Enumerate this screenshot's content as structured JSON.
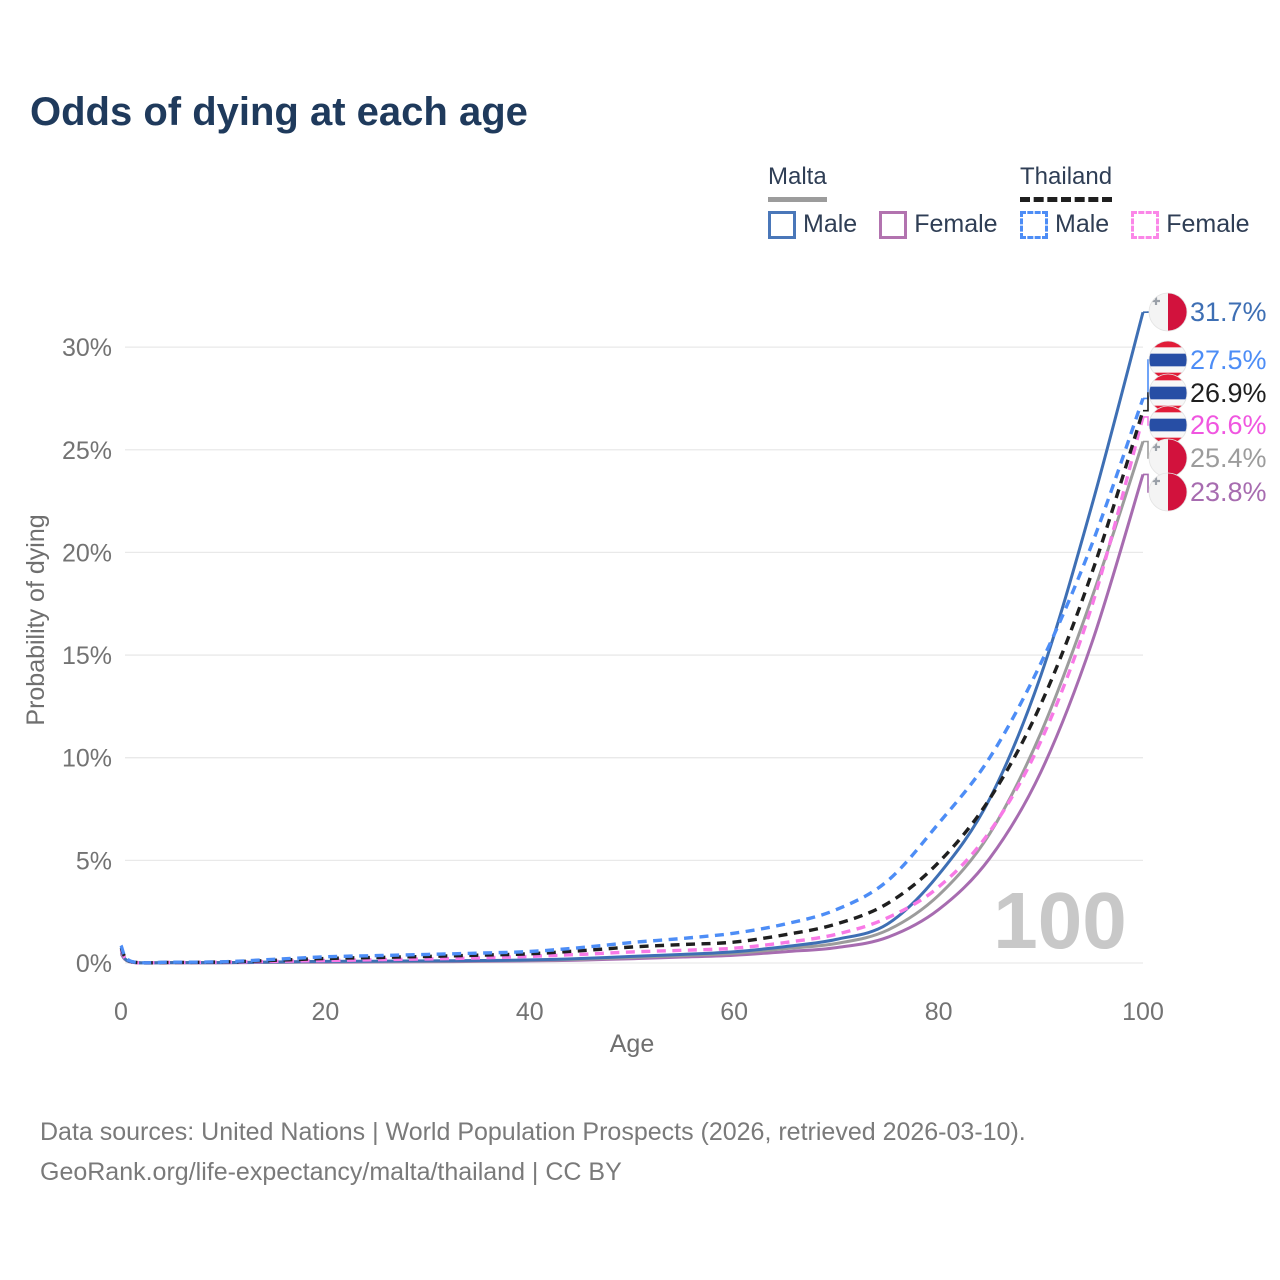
{
  "title": "Odds of dying at each age",
  "legend": {
    "groups": [
      {
        "country": "Malta",
        "line_style": "solid",
        "underline_color": "#9c9c9c",
        "items": [
          {
            "label": "Male",
            "color": "#4a77b9",
            "dashed": false
          },
          {
            "label": "Female",
            "color": "#b273af",
            "dashed": false
          }
        ]
      },
      {
        "country": "Thailand",
        "line_style": "dashed",
        "underline_color": "#1f1f1f",
        "items": [
          {
            "label": "Male",
            "color": "#4d8df6",
            "dashed": true
          },
          {
            "label": "Female",
            "color": "#fb86e8",
            "dashed": true
          }
        ]
      }
    ]
  },
  "watermark": "100",
  "footer": {
    "line1": "Data sources: United Nations | World Population Prospects (2026, retrieved 2026-03-10).",
    "line2": "GeoRank.org/life-expectancy/malta/thailand | CC BY"
  },
  "chart_data": {
    "type": "line",
    "title": "Odds of dying at each age",
    "xlabel": "Age",
    "ylabel": "Probability of dying",
    "xlim": [
      0,
      100
    ],
    "ylim": [
      0,
      32
    ],
    "xticks": [
      0,
      20,
      40,
      60,
      80,
      100
    ],
    "ytick_labels": [
      "0%",
      "5%",
      "10%",
      "15%",
      "20%",
      "25%",
      "30%"
    ],
    "ytick_values": [
      0,
      5,
      10,
      15,
      20,
      25,
      30
    ],
    "grid": "horizontal",
    "hover_age": 100,
    "x": [
      0,
      1,
      5,
      10,
      15,
      20,
      25,
      30,
      35,
      40,
      45,
      50,
      55,
      60,
      65,
      70,
      75,
      80,
      85,
      90,
      95,
      100
    ],
    "series": [
      {
        "id": "malta-female",
        "country": "Malta",
        "sex": "Female",
        "color": "#a76cb0",
        "label_color": "#a76cb0",
        "dashed": false,
        "flag": "malta",
        "end_label": "23.8%",
        "values": [
          0.45,
          0.04,
          0.01,
          0.01,
          0.03,
          0.04,
          0.05,
          0.06,
          0.08,
          0.1,
          0.14,
          0.21,
          0.29,
          0.38,
          0.55,
          0.75,
          1.25,
          2.6,
          5.1,
          9.3,
          15.6,
          23.8
        ]
      },
      {
        "id": "malta-all",
        "country": "Malta",
        "sex": "Both",
        "color": "#9c9c9c",
        "label_color": "#9c9c9c",
        "dashed": false,
        "flag": "malta",
        "end_label": "25.4%",
        "values": [
          0.5,
          0.04,
          0.02,
          0.02,
          0.04,
          0.06,
          0.07,
          0.08,
          0.1,
          0.13,
          0.18,
          0.27,
          0.36,
          0.47,
          0.7,
          0.95,
          1.6,
          3.3,
          6.3,
          11.2,
          17.8,
          25.4
        ]
      },
      {
        "id": "malta-male",
        "country": "Malta",
        "sex": "Male",
        "color": "#3e6fb4",
        "label_color": "#3e6fb4",
        "dashed": false,
        "flag": "malta",
        "end_label": "31.7%",
        "values": [
          0.55,
          0.05,
          0.02,
          0.02,
          0.05,
          0.08,
          0.09,
          0.1,
          0.12,
          0.15,
          0.22,
          0.32,
          0.42,
          0.55,
          0.8,
          1.15,
          1.9,
          4.3,
          8.0,
          14.0,
          22.3,
          31.7
        ]
      },
      {
        "id": "thailand-female",
        "country": "Thailand",
        "sex": "Female",
        "color": "#f879e6",
        "label_color": "#f056e0",
        "dashed": true,
        "flag": "thailand",
        "end_label": "26.6%",
        "values": [
          0.65,
          0.06,
          0.03,
          0.04,
          0.08,
          0.12,
          0.16,
          0.2,
          0.25,
          0.32,
          0.42,
          0.54,
          0.62,
          0.72,
          1.0,
          1.4,
          2.2,
          3.7,
          6.4,
          10.8,
          17.4,
          26.6
        ]
      },
      {
        "id": "thailand-all",
        "country": "Thailand",
        "sex": "Both",
        "color": "#1f1f1f",
        "label_color": "#1f1f1f",
        "dashed": true,
        "flag": "thailand",
        "end_label": "26.9%",
        "values": [
          0.75,
          0.07,
          0.03,
          0.05,
          0.13,
          0.22,
          0.27,
          0.32,
          0.38,
          0.45,
          0.6,
          0.78,
          0.9,
          1.02,
          1.38,
          1.9,
          2.9,
          4.9,
          8.0,
          12.6,
          19.0,
          26.9
        ]
      },
      {
        "id": "thailand-male",
        "country": "Thailand",
        "sex": "Male",
        "color": "#4d8df6",
        "label_color": "#4d8df6",
        "dashed": true,
        "flag": "thailand",
        "end_label": "27.5%",
        "values": [
          0.85,
          0.08,
          0.04,
          0.06,
          0.18,
          0.3,
          0.36,
          0.42,
          0.48,
          0.56,
          0.75,
          1.0,
          1.2,
          1.45,
          1.9,
          2.6,
          4.0,
          6.8,
          10.0,
          14.6,
          20.4,
          27.5
        ]
      }
    ]
  }
}
